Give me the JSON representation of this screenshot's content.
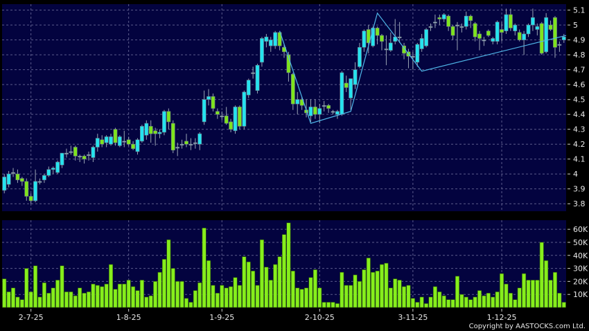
{
  "copyright": "Copyright by AASTOCKS.com Ltd.",
  "colors": {
    "background": "#000000",
    "panel": "#03033f",
    "grid": "#5c5c8c",
    "up": "#25e3ef",
    "down": "#7ee41c",
    "doji": "#9fb3c0",
    "volume": "#86ee1c",
    "trendline": "#4fb6e8"
  },
  "chart_data": [
    {
      "type": "candlestick",
      "title": "",
      "ylim": [
        3.75,
        5.14
      ],
      "yticks": [
        "3.8",
        "3.9",
        "4",
        "4.1",
        "4.2",
        "4.3",
        "4.4",
        "4.5",
        "4.6",
        "4.7",
        "4.8",
        "4.9",
        "5",
        "5.1"
      ],
      "grid": true,
      "x_labels": [
        {
          "index": 6,
          "label": "2-7-25"
        },
        {
          "index": 28,
          "label": "1-8-25"
        },
        {
          "index": 49,
          "label": "1-9-25"
        },
        {
          "index": 71,
          "label": "2-10-25"
        },
        {
          "index": 92,
          "label": "3-11-25"
        },
        {
          "index": 112,
          "label": "1-12-25"
        }
      ],
      "ohlc": [
        [
          3.89,
          4.0,
          3.87,
          3.98
        ],
        [
          3.93,
          4.02,
          3.91,
          4.0
        ],
        [
          4.01,
          4.04,
          3.98,
          4.01
        ],
        [
          4.0,
          4.03,
          3.94,
          3.96
        ],
        [
          3.97,
          3.98,
          3.92,
          3.95
        ],
        [
          3.95,
          3.97,
          3.82,
          3.85
        ],
        [
          3.85,
          3.87,
          3.8,
          3.82
        ],
        [
          3.82,
          4.03,
          3.81,
          3.95
        ],
        [
          3.95,
          3.97,
          3.93,
          3.95
        ],
        [
          3.96,
          4.0,
          3.94,
          3.99
        ],
        [
          3.99,
          4.05,
          3.98,
          4.03
        ],
        [
          4.03,
          4.05,
          4.0,
          4.04
        ],
        [
          4.01,
          4.09,
          4.0,
          4.08
        ],
        [
          4.06,
          4.14,
          4.04,
          4.14
        ],
        [
          4.14,
          4.17,
          4.11,
          4.14
        ],
        [
          4.15,
          4.19,
          4.13,
          4.15
        ],
        [
          4.18,
          4.19,
          4.09,
          4.12
        ],
        [
          4.12,
          4.13,
          4.08,
          4.12
        ],
        [
          4.12,
          4.13,
          4.07,
          4.1
        ],
        [
          4.13,
          4.15,
          4.09,
          4.13
        ],
        [
          4.11,
          4.19,
          4.08,
          4.18
        ],
        [
          4.18,
          4.27,
          4.15,
          4.24
        ],
        [
          4.23,
          4.26,
          4.18,
          4.2
        ],
        [
          4.21,
          4.26,
          4.18,
          4.25
        ],
        [
          4.2,
          4.27,
          4.19,
          4.25
        ],
        [
          4.3,
          4.31,
          4.19,
          4.21
        ],
        [
          4.19,
          4.26,
          4.18,
          4.25
        ],
        [
          4.22,
          4.29,
          4.18,
          4.22
        ],
        [
          4.23,
          4.25,
          4.19,
          4.2
        ],
        [
          4.2,
          4.22,
          4.16,
          4.17
        ],
        [
          4.15,
          4.24,
          4.13,
          4.23
        ],
        [
          4.22,
          4.33,
          4.21,
          4.32
        ],
        [
          4.26,
          4.36,
          4.23,
          4.34
        ],
        [
          4.32,
          4.36,
          4.21,
          4.27
        ],
        [
          4.29,
          4.31,
          4.19,
          4.27
        ],
        [
          4.27,
          4.3,
          4.24,
          4.28
        ],
        [
          4.28,
          4.43,
          4.26,
          4.42
        ],
        [
          4.42,
          4.44,
          4.3,
          4.35
        ],
        [
          4.34,
          4.36,
          4.14,
          4.16
        ],
        [
          4.18,
          4.21,
          4.12,
          4.18
        ],
        [
          4.2,
          4.23,
          4.17,
          4.2
        ],
        [
          4.22,
          4.27,
          4.18,
          4.2
        ],
        [
          4.2,
          4.24,
          4.16,
          4.2
        ],
        [
          4.21,
          4.24,
          4.17,
          4.21
        ],
        [
          4.2,
          4.28,
          4.16,
          4.27
        ],
        [
          4.35,
          4.56,
          4.33,
          4.5
        ],
        [
          4.5,
          4.57,
          4.46,
          4.52
        ],
        [
          4.52,
          4.54,
          4.42,
          4.44
        ],
        [
          4.42,
          4.44,
          4.37,
          4.4
        ],
        [
          4.39,
          4.42,
          4.36,
          4.39
        ],
        [
          4.39,
          4.45,
          4.33,
          4.34
        ],
        [
          4.35,
          4.37,
          4.28,
          4.3
        ],
        [
          4.29,
          4.46,
          4.27,
          4.45
        ],
        [
          4.45,
          4.46,
          4.3,
          4.32
        ],
        [
          4.32,
          4.56,
          4.3,
          4.55
        ],
        [
          4.53,
          4.64,
          4.51,
          4.63
        ],
        [
          4.68,
          4.72,
          4.64,
          4.68
        ],
        [
          4.56,
          4.74,
          4.54,
          4.73
        ],
        [
          4.75,
          4.92,
          4.72,
          4.91
        ],
        [
          4.89,
          4.94,
          4.85,
          4.92
        ],
        [
          4.86,
          4.92,
          4.82,
          4.9
        ],
        [
          4.86,
          4.96,
          4.84,
          4.95
        ],
        [
          4.95,
          4.96,
          4.83,
          4.86
        ],
        [
          4.85,
          4.87,
          4.78,
          4.82
        ],
        [
          4.8,
          4.82,
          4.62,
          4.68
        ],
        [
          4.67,
          4.68,
          4.43,
          4.47
        ],
        [
          4.47,
          4.55,
          4.4,
          4.5
        ],
        [
          4.5,
          4.52,
          4.43,
          4.46
        ],
        [
          4.43,
          4.5,
          4.38,
          4.41
        ],
        [
          4.39,
          4.5,
          4.35,
          4.45
        ],
        [
          4.45,
          4.5,
          4.37,
          4.4
        ],
        [
          4.4,
          4.47,
          4.34,
          4.44
        ],
        [
          4.46,
          4.49,
          4.42,
          4.46
        ],
        [
          4.46,
          4.47,
          4.41,
          4.44
        ],
        [
          4.42,
          4.43,
          4.4,
          4.42
        ],
        [
          4.4,
          4.43,
          4.37,
          4.42
        ],
        [
          4.4,
          4.69,
          4.39,
          4.68
        ],
        [
          4.61,
          4.66,
          4.55,
          4.58
        ],
        [
          4.51,
          4.64,
          4.43,
          4.64
        ],
        [
          4.6,
          4.75,
          4.57,
          4.7
        ],
        [
          4.72,
          4.88,
          4.71,
          4.85
        ],
        [
          4.85,
          4.97,
          4.82,
          4.96
        ],
        [
          4.97,
          5.0,
          4.81,
          4.88
        ],
        [
          4.86,
          4.99,
          4.85,
          4.98
        ],
        [
          4.98,
          4.99,
          4.87,
          4.93
        ],
        [
          4.93,
          4.94,
          4.83,
          4.89
        ],
        [
          4.84,
          4.93,
          4.73,
          4.84
        ],
        [
          4.83,
          4.95,
          4.82,
          4.88
        ],
        [
          4.89,
          5.04,
          4.87,
          4.92
        ],
        [
          4.92,
          5.02,
          4.88,
          4.92
        ],
        [
          4.86,
          4.88,
          4.77,
          4.81
        ],
        [
          4.82,
          4.84,
          4.71,
          4.79
        ],
        [
          4.79,
          4.82,
          4.7,
          4.79
        ],
        [
          4.75,
          4.88,
          4.72,
          4.87
        ],
        [
          4.84,
          4.94,
          4.82,
          4.91
        ],
        [
          4.86,
          4.98,
          4.85,
          4.97
        ],
        [
          4.99,
          5.01,
          4.96,
          4.99
        ],
        [
          5.02,
          5.07,
          4.98,
          5.02
        ],
        [
          5.05,
          5.07,
          5.0,
          5.04
        ],
        [
          5.04,
          5.08,
          5.02,
          5.07
        ],
        [
          5.06,
          5.07,
          4.96,
          4.99
        ],
        [
          4.99,
          5.0,
          4.9,
          4.93
        ],
        [
          5.0,
          5.02,
          4.83,
          5.0
        ],
        [
          4.99,
          5.01,
          4.95,
          4.99
        ],
        [
          4.99,
          5.09,
          4.97,
          5.06
        ],
        [
          5.06,
          5.07,
          4.98,
          5.03
        ],
        [
          5.01,
          5.02,
          4.89,
          4.92
        ],
        [
          4.94,
          4.96,
          4.83,
          4.91
        ],
        [
          4.9,
          4.92,
          4.86,
          4.9
        ],
        [
          4.96,
          4.97,
          4.92,
          4.93
        ],
        [
          4.89,
          4.92,
          4.87,
          4.91
        ],
        [
          4.89,
          5.03,
          4.87,
          5.02
        ],
        [
          4.97,
          5.02,
          4.89,
          4.95
        ],
        [
          4.96,
          5.11,
          4.94,
          5.07
        ],
        [
          5.07,
          5.11,
          4.96,
          4.98
        ],
        [
          4.96,
          5.01,
          4.93,
          5.0
        ],
        [
          4.95,
          4.97,
          4.89,
          4.9
        ],
        [
          4.9,
          4.96,
          4.8,
          4.94
        ],
        [
          4.94,
          5.01,
          4.92,
          5.0
        ],
        [
          5.0,
          5.11,
          4.96,
          5.05
        ],
        [
          4.97,
          5.01,
          4.93,
          4.99
        ],
        [
          5.01,
          5.02,
          4.8,
          4.81
        ],
        [
          4.82,
          5.08,
          4.81,
          5.05
        ],
        [
          5.0,
          5.03,
          4.96,
          4.97
        ],
        [
          5.05,
          5.06,
          4.78,
          4.85
        ],
        [
          4.87,
          4.89,
          4.82,
          4.87
        ],
        [
          4.9,
          4.94,
          4.88,
          4.92
        ]
      ],
      "trendline": [
        {
          "index": 62,
          "value": 4.96
        },
        {
          "index": 69,
          "value": 4.34
        },
        {
          "index": 78,
          "value": 4.42
        },
        {
          "index": 84,
          "value": 5.08
        },
        {
          "index": 94,
          "value": 4.69
        },
        {
          "index": 126.5,
          "value": 4.93
        }
      ]
    },
    {
      "type": "bar",
      "title": "",
      "ylabel": "",
      "ylim": [
        0,
        67000
      ],
      "yticks": [
        {
          "value": 10000,
          "label": "10K"
        },
        {
          "value": 20000,
          "label": "20K"
        },
        {
          "value": 30000,
          "label": "30K"
        },
        {
          "value": 40000,
          "label": "40K"
        },
        {
          "value": 50000,
          "label": "50K"
        },
        {
          "value": 60000,
          "label": "60K"
        }
      ],
      "grid": true,
      "values": [
        22000,
        12000,
        15000,
        8000,
        6000,
        30000,
        12000,
        32000,
        8000,
        19000,
        11000,
        15000,
        21000,
        32000,
        12000,
        12000,
        9000,
        15000,
        11000,
        12000,
        18000,
        17000,
        16000,
        18000,
        33000,
        14000,
        18000,
        18000,
        21000,
        16000,
        13000,
        21000,
        8000,
        9000,
        20000,
        27000,
        37000,
        52000,
        30000,
        20000,
        20000,
        7000,
        4000,
        13000,
        19000,
        61000,
        36000,
        17000,
        11000,
        17000,
        15000,
        16000,
        23000,
        17000,
        39000,
        35000,
        28000,
        17000,
        52000,
        31000,
        21000,
        33000,
        39000,
        56000,
        65000,
        28000,
        15000,
        14000,
        15000,
        23000,
        29000,
        15000,
        4000,
        4000,
        4000,
        3000,
        27000,
        17000,
        17000,
        25000,
        20000,
        29000,
        38000,
        27000,
        28000,
        33000,
        34000,
        15000,
        22000,
        21000,
        16000,
        17000,
        7000,
        4000,
        8000,
        3000,
        8000,
        16000,
        12000,
        9000,
        6000,
        6000,
        24000,
        10000,
        8000,
        6000,
        8000,
        13000,
        9000,
        11000,
        8000,
        12000,
        26000,
        18000,
        11000,
        6000,
        15000,
        26000,
        21000,
        21000,
        21000,
        50000,
        36000,
        21000,
        27000,
        11000,
        4000
      ]
    }
  ]
}
